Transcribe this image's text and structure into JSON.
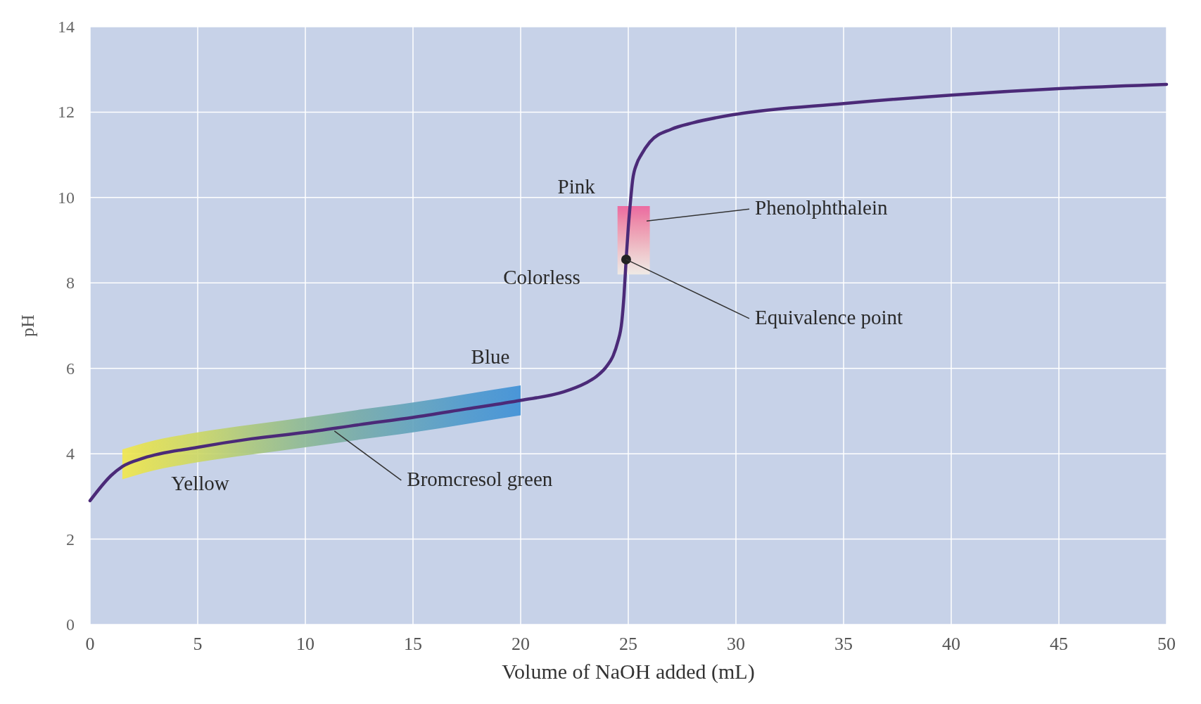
{
  "chart_data": {
    "type": "line",
    "xlabel": "Volume of NaOH added (mL)",
    "ylabel": "pH",
    "xlim": [
      0,
      50
    ],
    "ylim": [
      0,
      14
    ],
    "xticks": [
      0,
      5,
      10,
      15,
      20,
      25,
      30,
      35,
      40,
      45,
      50
    ],
    "yticks": [
      0,
      2,
      4,
      6,
      8,
      10,
      12,
      14
    ],
    "grid": true,
    "series": [
      {
        "color": "#4b2a78",
        "x": [
          0,
          1,
          1.5,
          2.5,
          5,
          7.5,
          10,
          12.5,
          15,
          17.5,
          20,
          22,
          23,
          23.5,
          24,
          24.3,
          24.5,
          24.7,
          24.8,
          24.9,
          25,
          25.1,
          25.2,
          25.4,
          25.6,
          26,
          27,
          28,
          30,
          35,
          40,
          45,
          50
        ],
        "values": [
          2.9,
          3.5,
          3.7,
          3.9,
          4.15,
          4.35,
          4.5,
          4.68,
          4.85,
          5.05,
          5.25,
          5.45,
          5.65,
          5.8,
          6.05,
          6.3,
          6.6,
          7.1,
          7.7,
          8.55,
          9.3,
          9.9,
          10.4,
          10.8,
          11.0,
          11.3,
          11.6,
          11.75,
          11.95,
          12.2,
          12.4,
          12.55,
          12.65
        ],
        "lower": [
          null,
          null,
          3.4,
          3.55,
          3.8,
          3.98,
          4.15,
          4.33,
          4.5,
          4.7,
          4.9,
          null,
          null,
          null,
          null,
          null,
          8.2,
          8.2,
          8.2,
          8.2,
          8.2,
          8.2,
          8.2,
          8.2,
          8.2,
          8.2,
          null,
          null,
          null,
          null,
          null,
          null,
          null
        ],
        "upper": [
          null,
          null,
          4.1,
          4.25,
          4.5,
          4.68,
          4.85,
          5.03,
          5.2,
          5.4,
          5.6,
          null,
          null,
          null,
          null,
          null,
          9.8,
          9.8,
          9.8,
          9.8,
          9.8,
          9.8,
          9.8,
          9.8,
          9.8,
          9.8,
          null,
          null,
          null,
          null,
          null,
          null,
          null
        ],
        "colors": [
          null,
          null,
          "#f2e84a",
          "#e6e24e",
          "#cdd862",
          "#abc87c",
          "#8cb894",
          "#74aaa8",
          "#60a2bc",
          "#4c98cc",
          "#3c8fd6",
          null,
          null,
          null,
          null,
          null,
          "#f3ece4",
          "#f3e0dc",
          "#f3d2d2",
          "#f3c4c8",
          "#f2b4be",
          "#f2a4b4",
          "#f294ac",
          "#f184a4",
          "#f0709e",
          "#f0609a",
          null,
          null,
          null,
          null,
          null,
          null,
          null
        ]
      },
      {
        "type": "scatter",
        "color": "#222222",
        "x": [
          24.9
        ],
        "values": [
          8.55
        ]
      }
    ],
    "annotations": [
      {
        "text": "Pink",
        "x": 25.2,
        "y": 9.8
      },
      {
        "text": "Colorless",
        "x": 25,
        "y": 8.2
      },
      {
        "text": "Phenolphthalein",
        "x": 25.85,
        "y": 9.45
      },
      {
        "text": "Equivalence point",
        "x": 24.9,
        "y": 8.55
      },
      {
        "text": "Blue",
        "x": 20,
        "y": 5.5
      },
      {
        "text": "Yellow",
        "x": 2.5,
        "y": 3.6
      },
      {
        "text": "Bromcresol green",
        "x": 11.35,
        "y": 4.53
      }
    ]
  }
}
